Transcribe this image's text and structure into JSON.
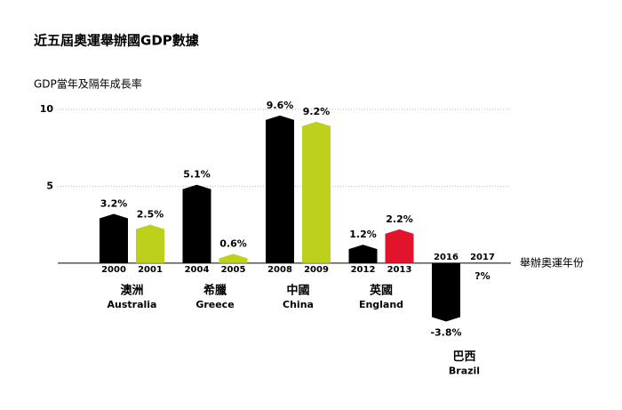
{
  "chart_data": {
    "type": "bar",
    "title": "近五屆奧運舉辦國GDP數據",
    "y_label": "GDP當年及隔年成長率",
    "x_label": "舉辦奧運年份",
    "categories": [
      "2000",
      "2001",
      "2004",
      "2005",
      "2008",
      "2009",
      "2012",
      "2013",
      "2016",
      "2017"
    ],
    "values": [
      3.2,
      2.5,
      5.1,
      0.6,
      9.6,
      9.2,
      1.2,
      2.2,
      -3.8,
      null
    ],
    "value_labels": [
      "3.2%",
      "2.5%",
      "5.1%",
      "0.6%",
      "9.6%",
      "9.2%",
      "1.2%",
      "2.2%",
      "-3.8%",
      "?%"
    ],
    "colors": [
      "#000000",
      "#bcd01c",
      "#000000",
      "#bcd01c",
      "#000000",
      "#bcd01c",
      "#000000",
      "#e2142b",
      "#000000",
      "#bcd01c"
    ],
    "groups": [
      {
        "name": "澳洲",
        "name_en": "Australia"
      },
      {
        "name": "希臘",
        "name_en": "Greece"
      },
      {
        "name": "中國",
        "name_en": "China"
      },
      {
        "name": "英國",
        "name_en": "England"
      },
      {
        "name": "巴西",
        "name_en": "Brazil"
      }
    ],
    "ylim": [
      -4,
      10
    ],
    "yticks": [
      5,
      10
    ],
    "grid": true
  }
}
